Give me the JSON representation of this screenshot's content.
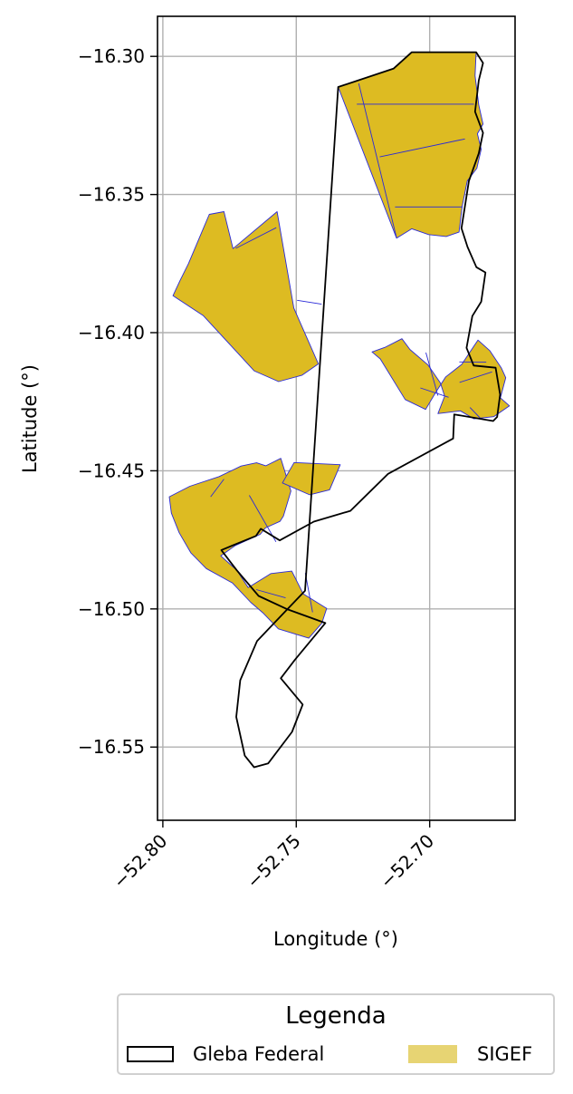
{
  "chart_data": {
    "type": "map",
    "xlabel": "Longitude (°)",
    "ylabel": "Latitude (°)",
    "xlim": [
      -52.802,
      -52.668
    ],
    "ylim": [
      -16.5765,
      -16.2855
    ],
    "xticks": [
      -52.8,
      -52.75,
      -52.7
    ],
    "yticks": [
      -16.3,
      -16.35,
      -16.4,
      -16.45,
      -16.5,
      -16.55
    ],
    "xtick_labels": [
      "−52.80",
      "−52.75",
      "−52.70"
    ],
    "ytick_labels": [
      "−16.30",
      "−16.35",
      "−16.40",
      "−16.45",
      "−16.50",
      "−16.55"
    ],
    "grid": true,
    "colors": {
      "gleba_outline": "#000000",
      "sigef_fill": "#ddbb22",
      "sigef_edge": "#2a2ad8",
      "grid": "#b0b0b0",
      "legend_sigef": "#e7d473"
    },
    "legend": {
      "title": "Legenda",
      "placement": "bottom-center",
      "entries": [
        {
          "label": "Gleba Federal",
          "style": "outline"
        },
        {
          "label": "SIGEF",
          "style": "fill"
        }
      ]
    },
    "sigef_polygons": [
      [
        [
          -52.7343,
          -16.3111
        ],
        [
          -52.7135,
          -16.3044
        ],
        [
          -52.7067,
          -16.2985
        ],
        [
          -52.6826,
          -16.2985
        ],
        [
          -52.683,
          -16.307
        ],
        [
          -52.6816,
          -16.3176
        ],
        [
          -52.68,
          -16.3245
        ],
        [
          -52.6821,
          -16.328
        ],
        [
          -52.6807,
          -16.3336
        ],
        [
          -52.6823,
          -16.3405
        ],
        [
          -52.6859,
          -16.3451
        ],
        [
          -52.6878,
          -16.3542
        ],
        [
          -52.689,
          -16.3636
        ],
        [
          -52.6938,
          -16.3652
        ],
        [
          -52.7004,
          -16.3645
        ],
        [
          -52.7067,
          -16.3624
        ],
        [
          -52.7124,
          -16.3658
        ]
      ],
      [
        [
          -52.7904,
          -16.375
        ],
        [
          -52.7826,
          -16.3572
        ],
        [
          -52.7771,
          -16.3562
        ],
        [
          -52.7737,
          -16.3696
        ],
        [
          -52.7572,
          -16.3562
        ],
        [
          -52.7509,
          -16.3911
        ],
        [
          -52.7417,
          -16.4113
        ],
        [
          -52.7478,
          -16.4154
        ],
        [
          -52.7566,
          -16.4177
        ],
        [
          -52.7658,
          -16.4138
        ],
        [
          -52.7725,
          -16.4068
        ],
        [
          -52.7849,
          -16.3938
        ],
        [
          -52.7962,
          -16.3866
        ],
        [
          -52.7935,
          -16.381
        ]
      ],
      [
        [
          -52.688,
          -16.4115
        ],
        [
          -52.6819,
          -16.4027
        ],
        [
          -52.6775,
          -16.4065
        ],
        [
          -52.6732,
          -16.4127
        ],
        [
          -52.6715,
          -16.4163
        ],
        [
          -52.6735,
          -16.4236
        ],
        [
          -52.6701,
          -16.4265
        ],
        [
          -52.676,
          -16.4304
        ],
        [
          -52.6834,
          -16.4312
        ],
        [
          -52.6885,
          -16.4283
        ],
        [
          -52.6969,
          -16.4293
        ],
        [
          -52.6944,
          -16.423
        ],
        [
          -52.696,
          -16.4182
        ],
        [
          -52.7006,
          -16.4117
        ],
        [
          -52.7074,
          -16.4061
        ],
        [
          -52.7104,
          -16.4022
        ],
        [
          -52.7165,
          -16.4052
        ],
        [
          -52.7216,
          -16.407
        ],
        [
          -52.7185,
          -16.4095
        ],
        [
          -52.7092,
          -16.4242
        ],
        [
          -52.7015,
          -16.4278
        ],
        [
          -52.698,
          -16.422
        ],
        [
          -52.694,
          -16.416
        ]
      ],
      [
        [
          -52.7649,
          -16.4471
        ],
        [
          -52.7614,
          -16.4482
        ],
        [
          -52.7558,
          -16.4455
        ],
        [
          -52.752,
          -16.4573
        ],
        [
          -52.7548,
          -16.4664
        ],
        [
          -52.7561,
          -16.4683
        ],
        [
          -52.7616,
          -16.4707
        ],
        [
          -52.7635,
          -16.473
        ],
        [
          -52.7729,
          -16.4771
        ],
        [
          -52.7783,
          -16.4808
        ],
        [
          -52.7723,
          -16.486
        ],
        [
          -52.768,
          -16.4923
        ],
        [
          -52.7595,
          -16.4872
        ],
        [
          -52.7517,
          -16.4863
        ],
        [
          -52.7474,
          -16.4945
        ],
        [
          -52.7386,
          -16.4998
        ],
        [
          -52.7404,
          -16.5051
        ],
        [
          -52.7453,
          -16.5106
        ],
        [
          -52.7567,
          -16.5072
        ],
        [
          -52.7625,
          -16.5014
        ],
        [
          -52.7671,
          -16.4976
        ],
        [
          -52.7739,
          -16.4906
        ],
        [
          -52.7837,
          -16.4854
        ],
        [
          -52.7895,
          -16.4797
        ],
        [
          -52.7939,
          -16.4724
        ],
        [
          -52.7968,
          -16.4653
        ],
        [
          -52.7976,
          -16.4594
        ],
        [
          -52.7899,
          -16.4556
        ],
        [
          -52.7789,
          -16.4521
        ],
        [
          -52.7707,
          -16.4483
        ]
      ],
      [
        [
          -52.7508,
          -16.447
        ],
        [
          -52.7335,
          -16.4478
        ],
        [
          -52.7375,
          -16.4569
        ],
        [
          -52.745,
          -16.4587
        ],
        [
          -52.7552,
          -16.4544
        ]
      ]
    ],
    "sigef_internal_lines": [
      [
        [
          -52.7273,
          -16.3173
        ],
        [
          -52.6834,
          -16.3173
        ]
      ],
      [
        [
          -52.7187,
          -16.3364
        ],
        [
          -52.6868,
          -16.3299
        ]
      ],
      [
        [
          -52.7266,
          -16.3098
        ],
        [
          -52.7124,
          -16.3657
        ]
      ],
      [
        [
          -52.713,
          -16.3545
        ],
        [
          -52.6878,
          -16.3545
        ]
      ],
      [
        [
          -52.7575,
          -16.362
        ],
        [
          -52.7727,
          -16.3695
        ]
      ],
      [
        [
          -52.7497,
          -16.3883
        ],
        [
          -52.7405,
          -16.3897
        ]
      ],
      [
        [
          -52.7014,
          -16.4072
        ],
        [
          -52.6969,
          -16.4228
        ]
      ],
      [
        [
          -52.7035,
          -16.42
        ],
        [
          -52.6929,
          -16.4234
        ]
      ],
      [
        [
          -52.6889,
          -16.4106
        ],
        [
          -52.6788,
          -16.4107
        ]
      ],
      [
        [
          -52.6888,
          -16.418
        ],
        [
          -52.6766,
          -16.4142
        ]
      ],
      [
        [
          -52.6849,
          -16.4271
        ],
        [
          -52.681,
          -16.431
        ]
      ],
      [
        [
          -52.7821,
          -16.4594
        ],
        [
          -52.7771,
          -16.453
        ]
      ],
      [
        [
          -52.7676,
          -16.4589
        ],
        [
          -52.7576,
          -16.4757
        ]
      ],
      [
        [
          -52.765,
          -16.493
        ],
        [
          -52.754,
          -16.496
        ]
      ],
      [
        [
          -52.7466,
          -16.487
        ],
        [
          -52.7439,
          -16.5012
        ]
      ]
    ],
    "gleba_polygons": [
      [
        [
          -52.7343,
          -16.3111
        ],
        [
          -52.7135,
          -16.3044
        ],
        [
          -52.7067,
          -16.2985
        ],
        [
          -52.6826,
          -16.2985
        ],
        [
          -52.68,
          -16.3024
        ],
        [
          -52.6816,
          -16.3087
        ],
        [
          -52.683,
          -16.32
        ],
        [
          -52.68,
          -16.3277
        ],
        [
          -52.6816,
          -16.3351
        ],
        [
          -52.6853,
          -16.3451
        ],
        [
          -52.6881,
          -16.3622
        ],
        [
          -52.6858,
          -16.369
        ],
        [
          -52.6825,
          -16.3763
        ],
        [
          -52.6791,
          -16.3782
        ],
        [
          -52.6807,
          -16.3888
        ],
        [
          -52.684,
          -16.394
        ],
        [
          -52.6862,
          -16.4055
        ],
        [
          -52.6835,
          -16.4119
        ],
        [
          -52.6753,
          -16.4127
        ],
        [
          -52.6736,
          -16.4224
        ],
        [
          -52.6747,
          -16.4305
        ],
        [
          -52.6762,
          -16.432
        ],
        [
          -52.6908,
          -16.4296
        ],
        [
          -52.6912,
          -16.4383
        ],
        [
          -52.7156,
          -16.4511
        ],
        [
          -52.7297,
          -16.4645
        ],
        [
          -52.7434,
          -16.4684
        ],
        [
          -52.7562,
          -16.4752
        ],
        [
          -52.7633,
          -16.471
        ],
        [
          -52.7651,
          -16.4736
        ],
        [
          -52.7781,
          -16.4787
        ],
        [
          -52.7723,
          -16.486
        ],
        [
          -52.7641,
          -16.4953
        ],
        [
          -52.7532,
          -16.5002
        ],
        [
          -52.7391,
          -16.5051
        ],
        [
          -52.7505,
          -16.5184
        ],
        [
          -52.7558,
          -16.5251
        ],
        [
          -52.7476,
          -16.5346
        ],
        [
          -52.7516,
          -16.5445
        ],
        [
          -52.7605,
          -16.5559
        ],
        [
          -52.7658,
          -16.5573
        ],
        [
          -52.7693,
          -16.5531
        ],
        [
          -52.7725,
          -16.5391
        ],
        [
          -52.771,
          -16.5258
        ],
        [
          -52.7647,
          -16.5116
        ],
        [
          -52.756,
          -16.5028
        ],
        [
          -52.7467,
          -16.4934
        ]
      ]
    ]
  }
}
